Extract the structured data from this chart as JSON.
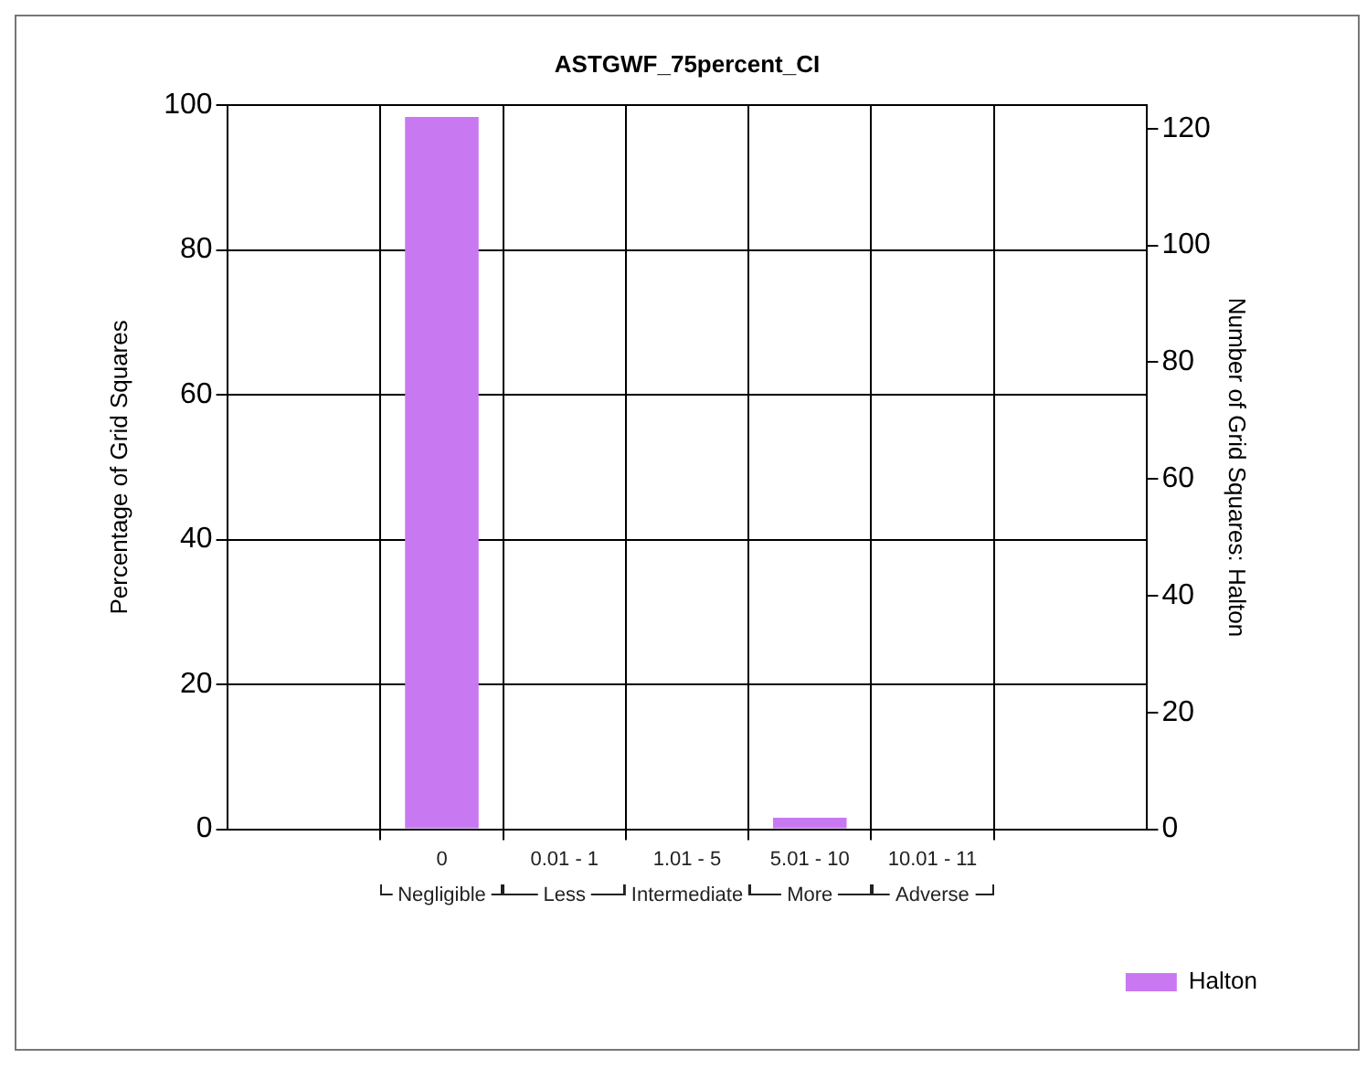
{
  "chart_data": {
    "type": "bar",
    "title": "ASTGWF_75percent_CI",
    "ylabel": "Percentage of Grid Squares",
    "y2label": "Number of Grid Squares: Halton",
    "categories": [
      "0",
      "0.01 - 1",
      "1.01 - 5",
      "5.01 - 10",
      "10.01 - 11"
    ],
    "series": [
      {
        "name": "Halton",
        "color": "#c879f2",
        "values": [
          98.4,
          0,
          0,
          1.6,
          0
        ]
      }
    ],
    "ylim": [
      0,
      100
    ],
    "yticks": [
      0,
      20,
      40,
      60,
      80,
      100
    ],
    "y2lim": [
      0,
      124
    ],
    "y2ticks": [
      0,
      20,
      40,
      60,
      80,
      100,
      120
    ],
    "annotations": [
      "Negligible",
      "Less",
      "Intermediate",
      "More",
      "Adverse"
    ],
    "grid": true,
    "legend": "bottom right"
  }
}
